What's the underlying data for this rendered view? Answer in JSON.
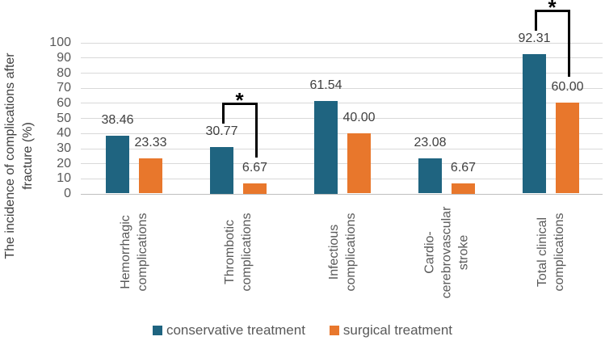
{
  "chart_data": {
    "type": "bar",
    "title": "",
    "ylabel": "The incidence of complications after fracture (%)",
    "ylabel_lines": [
      "The incidence of complications after",
      "fracture (%)"
    ],
    "ylim": [
      0,
      100
    ],
    "ytick_step": 10,
    "yticks": [
      0,
      10,
      20,
      30,
      40,
      50,
      60,
      70,
      80,
      90,
      100
    ],
    "grid": true,
    "legend_position": "bottom",
    "categories": [
      {
        "label": "Hemorrhagic complications",
        "lines": [
          "Hemorrhagic",
          "complications"
        ]
      },
      {
        "label": "Thrombotic complications",
        "lines": [
          "Thrombotic",
          "complications"
        ]
      },
      {
        "label": "Infectious complications",
        "lines": [
          "Infectious",
          "complications"
        ]
      },
      {
        "label": "Cardio-cerebrovascular stroke",
        "lines": [
          "Cardio-",
          "cerebrovascular",
          "stroke"
        ]
      },
      {
        "label": "Total clinical complications",
        "lines": [
          "Total clinical",
          "complications"
        ]
      }
    ],
    "series": [
      {
        "name": "conservative treatment",
        "color": "#1F6480",
        "values": [
          38.46,
          30.77,
          61.54,
          23.08,
          92.31
        ],
        "labels": [
          "38.46",
          "30.77",
          "61.54",
          "23.08",
          "92.31"
        ]
      },
      {
        "name": "surgical treatment",
        "color": "#E8772C",
        "values": [
          23.33,
          6.67,
          40.0,
          6.67,
          60.0
        ],
        "labels": [
          "23.33",
          "6.67",
          "40.00",
          "6.67",
          "60.00"
        ]
      }
    ],
    "significance_markers": [
      {
        "category_index": 1,
        "marker": "*"
      },
      {
        "category_index": 4,
        "marker": "*"
      }
    ],
    "colors": {
      "gridline": "#D9D9D9",
      "zero_line": "#BFBFBF",
      "tick_text": "#595959",
      "value_text": "#3F3F3F",
      "bracket": "#000000"
    }
  }
}
